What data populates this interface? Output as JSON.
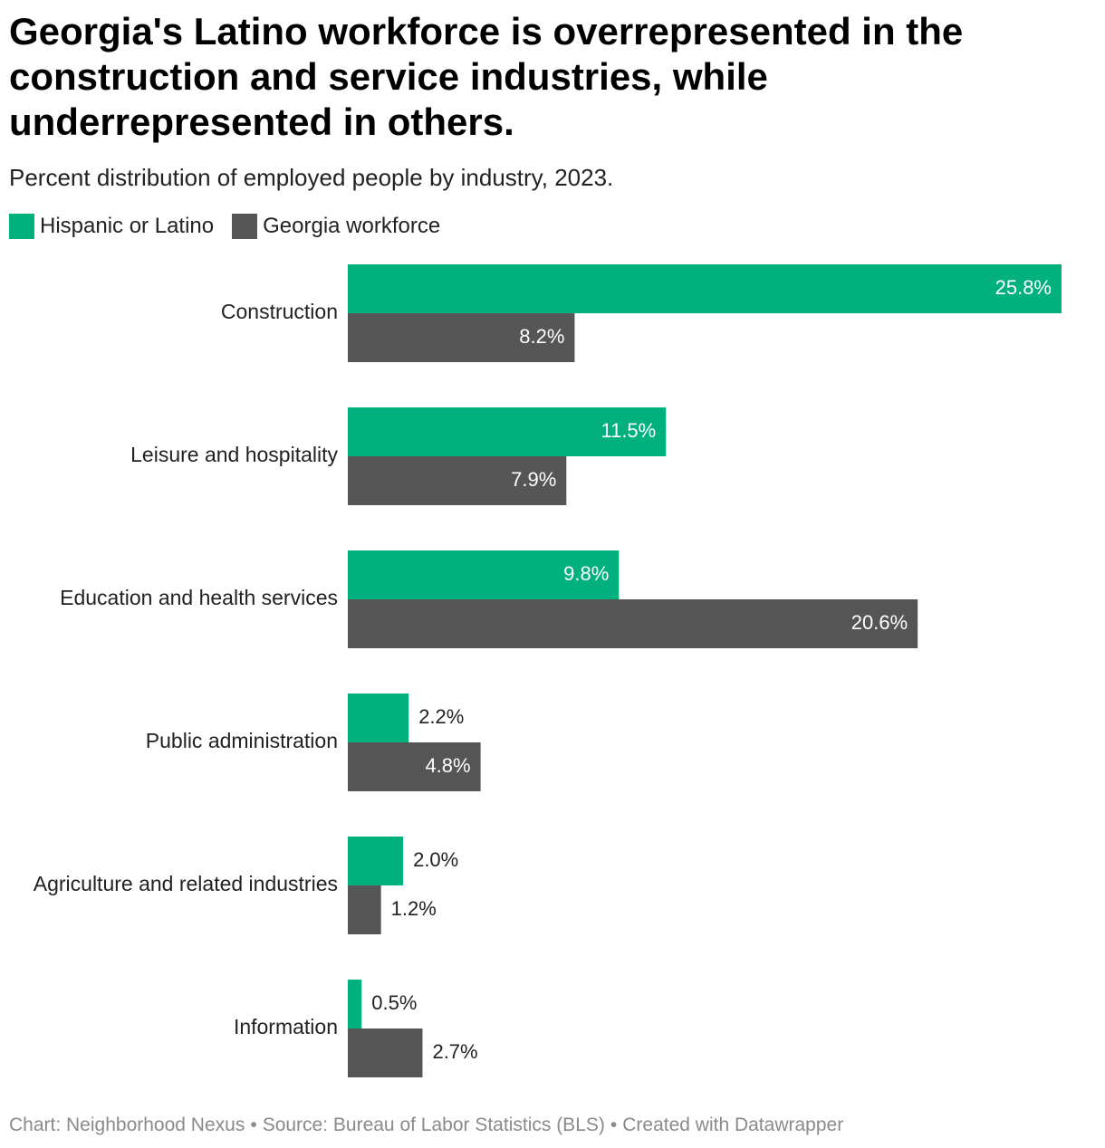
{
  "title": "Georgia's Latino workforce is overrepresented in the construction and service industries, while underrepresented in others.",
  "subtitle": "Percent distribution of employed people by industry, 2023.",
  "colors": {
    "latino": "#00b07d",
    "georgia": "#555555",
    "label_dark": "#222222",
    "label_light": "#ffffff"
  },
  "chart_data": {
    "type": "bar",
    "orientation": "horizontal",
    "categories": [
      "Construction",
      "Leisure and hospitality",
      "Education and health services",
      "Public administration",
      "Agriculture and related industries",
      "Information"
    ],
    "series": [
      {
        "name": "Hispanic or Latino",
        "values": [
          25.8,
          11.5,
          9.8,
          2.2,
          2.0,
          0.5
        ],
        "labels": [
          "25.8%",
          "11.5%",
          "9.8%",
          "2.2%",
          "2.0%",
          "0.5%"
        ]
      },
      {
        "name": "Georgia workforce",
        "values": [
          8.2,
          7.9,
          20.6,
          4.8,
          1.2,
          2.7
        ],
        "labels": [
          "8.2%",
          "7.9%",
          "20.6%",
          "4.8%",
          "1.2%",
          "2.7%"
        ]
      }
    ],
    "xlim": [
      0,
      25.8
    ],
    "grid": false,
    "legend": "top-left"
  },
  "footer": {
    "chart_credit": "Chart: Neighborhood Nexus",
    "source": "Source: Bureau of Labor Statistics (BLS)",
    "tool": "Created with Datawrapper",
    "separator": "•"
  }
}
